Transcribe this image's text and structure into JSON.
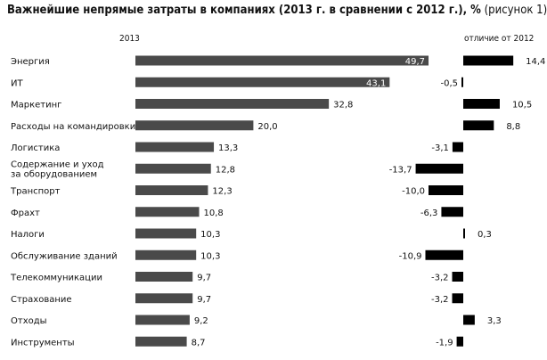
{
  "chart_data": {
    "type": "bar",
    "title_main": "Важнейшие непрямые затраты в компаниях (2013 г. в сравнении с 2012 г.), %",
    "title_note": "(рисунок 1)",
    "left_header": "2013",
    "right_header": "отличие от 2012",
    "categories": [
      [
        "Энергия"
      ],
      [
        "ИТ"
      ],
      [
        "Маркетинг"
      ],
      [
        "Расходы на командировки"
      ],
      [
        "Логистика"
      ],
      [
        "Содержание и уход",
        "за оборудованием"
      ],
      [
        "Транспорт"
      ],
      [
        "Фрахт"
      ],
      [
        "Налоги"
      ],
      [
        "Обслуживание зданий"
      ],
      [
        "Телекоммуникации"
      ],
      [
        "Страхование"
      ],
      [
        "Отходы"
      ],
      [
        "Инструменты"
      ]
    ],
    "series": [
      {
        "values": [
          49.7,
          43.1,
          32.8,
          20.0,
          13.3,
          12.8,
          12.3,
          10.8,
          10.3,
          10.3,
          9.7,
          9.7,
          9.2,
          8.7
        ],
        "labels": [
          "49,7",
          "43,1",
          "32,8",
          "20,0",
          "13,3",
          "12,8",
          "12,3",
          "10,8",
          "10,3",
          "10,3",
          "9,7",
          "9,7",
          "9,2",
          "8,7"
        ],
        "color": "#4a4a4a"
      },
      {
        "values": [
          14.4,
          -0.5,
          10.5,
          8.8,
          -3.1,
          -13.7,
          -10.0,
          -6.3,
          0.3,
          -10.9,
          -3.2,
          -3.2,
          3.3,
          -1.9
        ],
        "labels": [
          "14,4",
          "-0,5",
          "10,5",
          "8,8",
          "-3,1",
          "-13,7",
          "-10,0",
          "-6,3",
          "0,3",
          "-10,9",
          "-3,2",
          "-3,2",
          "3,3",
          "-1,9"
        ],
        "color": "#000000"
      }
    ]
  }
}
